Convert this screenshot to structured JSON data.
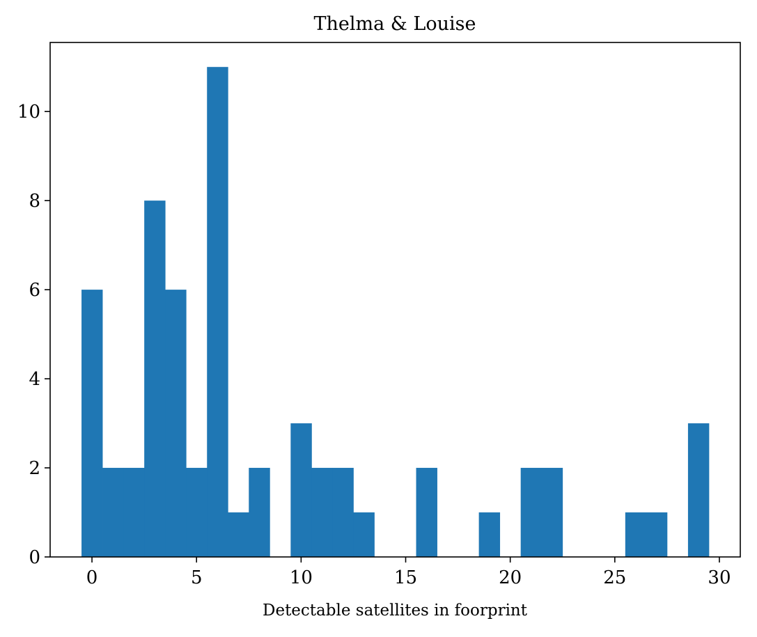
{
  "chart_data": {
    "type": "bar",
    "title": "Thelma & Louise",
    "xlabel": "Detectable satellites in foorprint",
    "ylabel": "",
    "bar_color": "#1f77b4",
    "bin_width": 1,
    "x": [
      0,
      1,
      2,
      3,
      4,
      5,
      6,
      7,
      8,
      9,
      10,
      11,
      12,
      13,
      14,
      15,
      16,
      17,
      18,
      19,
      20,
      21,
      22,
      23,
      24,
      25,
      26,
      27,
      28,
      29
    ],
    "values": [
      6,
      2,
      2,
      8,
      6,
      2,
      11,
      1,
      2,
      0,
      3,
      2,
      2,
      1,
      0,
      0,
      2,
      0,
      0,
      1,
      0,
      2,
      2,
      0,
      0,
      0,
      1,
      1,
      0,
      3
    ],
    "xlim": [
      -2,
      31
    ],
    "ylim": [
      0,
      11.55
    ],
    "xticks": [
      0,
      5,
      10,
      15,
      20,
      25,
      30
    ],
    "yticks": [
      0,
      2,
      4,
      6,
      8,
      10
    ],
    "grid": false
  }
}
